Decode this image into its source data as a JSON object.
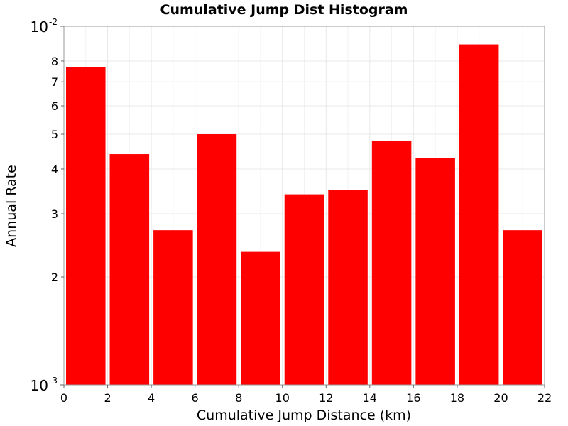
{
  "chart_data": {
    "type": "bar",
    "title": "Cumulative Jump Dist Histogram",
    "xlabel": "Cumulative Jump Distance (km)",
    "ylabel": "Annual Rate",
    "xlim": [
      0,
      22
    ],
    "ylim": [
      0.001,
      0.01
    ],
    "yscale": "log",
    "grid": true,
    "bar_color": "#ff0000",
    "bin_width": 2,
    "bins": [
      {
        "x": 1,
        "value": 0.0077
      },
      {
        "x": 3,
        "value": 0.0044
      },
      {
        "x": 5,
        "value": 0.0027
      },
      {
        "x": 7,
        "value": 0.005
      },
      {
        "x": 9,
        "value": 0.00235
      },
      {
        "x": 11,
        "value": 0.0034
      },
      {
        "x": 13,
        "value": 0.0035
      },
      {
        "x": 15,
        "value": 0.0048
      },
      {
        "x": 17,
        "value": 0.0043
      },
      {
        "x": 19,
        "value": 0.0089
      },
      {
        "x": 21,
        "value": 0.0027
      }
    ],
    "x_ticks": [
      "0",
      "2",
      "4",
      "6",
      "8",
      "10",
      "12",
      "14",
      "16",
      "18",
      "20",
      "22"
    ],
    "y_major_ticks": [
      {
        "value": 0.001,
        "mantissa": "10",
        "exponent": "-3"
      },
      {
        "value": 0.01,
        "mantissa": "10",
        "exponent": "-2"
      }
    ],
    "y_minor_ticks": [
      {
        "value": 0.002,
        "label": "2"
      },
      {
        "value": 0.003,
        "label": "3"
      },
      {
        "value": 0.004,
        "label": "4"
      },
      {
        "value": 0.005,
        "label": "5"
      },
      {
        "value": 0.006,
        "label": "6"
      },
      {
        "value": 0.007,
        "label": "7"
      },
      {
        "value": 0.008,
        "label": "8"
      }
    ]
  }
}
